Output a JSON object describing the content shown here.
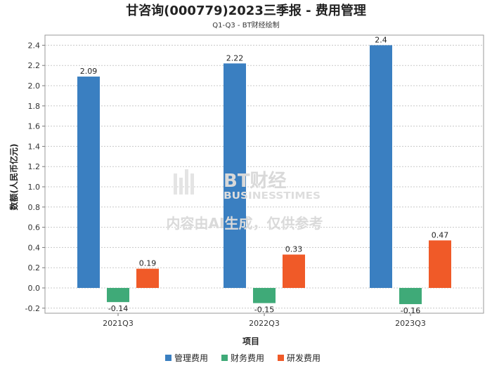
{
  "chart_data": {
    "type": "bar",
    "title": "甘咨询(000779)2023三季报 - 费用管理",
    "subtitle": "Q1-Q3 - BT财经绘制",
    "xlabel": "项目",
    "ylabel": "数额(人民币亿元)",
    "categories": [
      "2021Q3",
      "2022Q3",
      "2023Q3"
    ],
    "ylim": [
      -0.25,
      2.5
    ],
    "yticks": [
      -0.2,
      0.0,
      0.2,
      0.4,
      0.6,
      0.8,
      1.0,
      1.2,
      1.4,
      1.6,
      1.8,
      2.0,
      2.2,
      2.4
    ],
    "grid": true,
    "legend_position": "bottom",
    "series": [
      {
        "name": "管理费用",
        "color": "#3a7fc1",
        "values": [
          2.09,
          2.22,
          2.4
        ],
        "labels": [
          "2.09",
          "2.22",
          "2.4"
        ]
      },
      {
        "name": "财务费用",
        "color": "#3faa78",
        "values": [
          -0.14,
          -0.15,
          -0.16
        ],
        "labels": [
          "-0.14",
          "-0.15",
          "-0.16"
        ]
      },
      {
        "name": "研发费用",
        "color": "#f05a28",
        "values": [
          0.19,
          0.33,
          0.47
        ],
        "labels": [
          "0.19",
          "0.33",
          "0.47"
        ]
      }
    ]
  },
  "watermark": {
    "brand": "BT财经",
    "brand_en": "BUSINESSTIMES",
    "notice": "内容由AI生成，仅供参考"
  }
}
